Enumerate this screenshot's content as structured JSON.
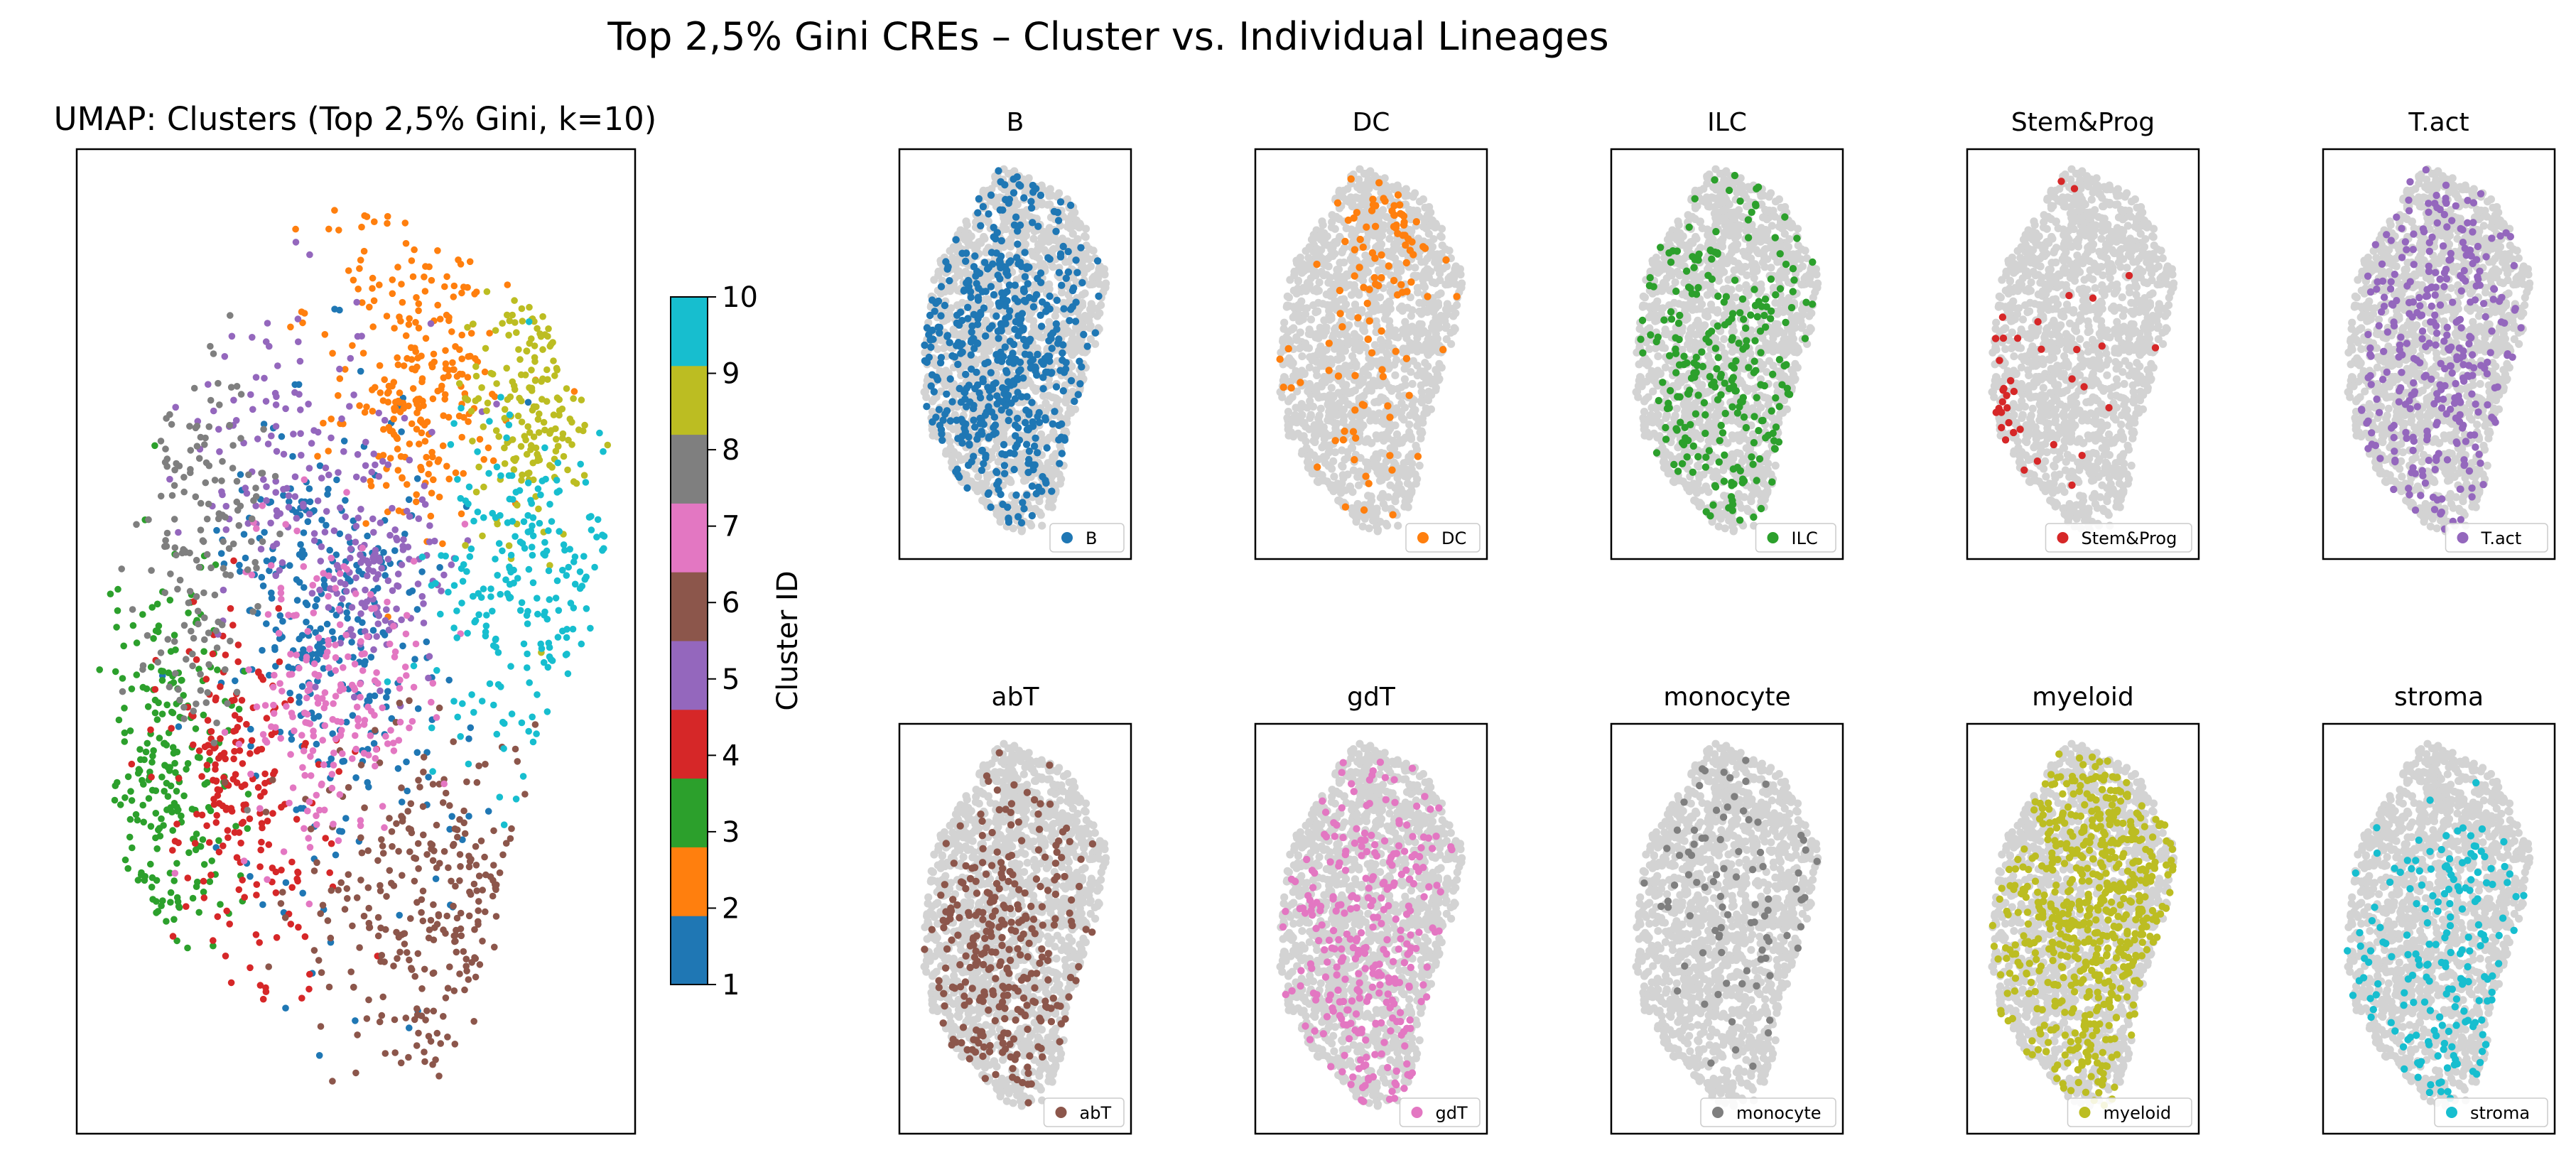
{
  "figure": {
    "suptitle": "Top 2,5% Gini CREs – Cluster vs. Individual Lineages"
  },
  "palette": {
    "gray": "#d3d3d3",
    "clusters": [
      "#1f77b4",
      "#ff7f0e",
      "#2ca02c",
      "#d62728",
      "#9467bd",
      "#8c564b",
      "#e377c2",
      "#7f7f7f",
      "#bcbd22",
      "#17becf"
    ]
  },
  "chart_data": [
    {
      "type": "scatter",
      "title": "UMAP: Clusters (Top 2,5% Gini, k=10)",
      "xlabel": "",
      "ylabel": "",
      "colorbar": {
        "label": "Cluster ID",
        "ticks": [
          "1",
          "2",
          "3",
          "4",
          "5",
          "6",
          "7",
          "8",
          "9",
          "10"
        ],
        "range": [
          1,
          10
        ]
      },
      "series": [
        {
          "cluster": 1,
          "color": "#1f77b4",
          "regions": [
            [
              0.5,
              0.55,
              0.12,
              0.16
            ],
            [
              0.4,
              0.44,
              0.08,
              0.08
            ]
          ]
        },
        {
          "cluster": 2,
          "color": "#ff7f0e",
          "regions": [
            [
              0.6,
              0.14,
              0.1,
              0.1
            ],
            [
              0.62,
              0.22,
              0.07,
              0.07
            ]
          ]
        },
        {
          "cluster": 3,
          "color": "#2ca02c",
          "regions": [
            [
              0.12,
              0.65,
              0.07,
              0.13
            ]
          ]
        },
        {
          "cluster": 4,
          "color": "#d62728",
          "regions": [
            [
              0.3,
              0.72,
              0.09,
              0.1
            ],
            [
              0.25,
              0.62,
              0.05,
              0.06
            ]
          ]
        },
        {
          "cluster": 5,
          "color": "#9467bd",
          "regions": [
            [
              0.38,
              0.27,
              0.13,
              0.09
            ],
            [
              0.52,
              0.42,
              0.07,
              0.05
            ]
          ]
        },
        {
          "cluster": 6,
          "color": "#8c564b",
          "regions": [
            [
              0.64,
              0.8,
              0.12,
              0.1
            ]
          ]
        },
        {
          "cluster": 7,
          "color": "#e377c2",
          "regions": [
            [
              0.45,
              0.56,
              0.09,
              0.09
            ]
          ]
        },
        {
          "cluster": 8,
          "color": "#7f7f7f",
          "regions": [
            [
              0.19,
              0.38,
              0.06,
              0.11
            ]
          ]
        },
        {
          "cluster": 9,
          "color": "#bcbd22",
          "regions": [
            [
              0.83,
              0.22,
              0.06,
              0.08
            ]
          ]
        },
        {
          "cluster": 10,
          "color": "#17becf",
          "regions": [
            [
              0.82,
              0.45,
              0.09,
              0.1
            ]
          ]
        }
      ]
    },
    {
      "type": "scatter",
      "small_multiples": true,
      "panels": [
        {
          "title": "B",
          "legend": "B",
          "color": "#1f77b4",
          "count": 520,
          "regions": [
            [
              0.42,
              0.52,
              0.3,
              0.32
            ]
          ]
        },
        {
          "title": "DC",
          "legend": "DC",
          "color": "#ff7f0e",
          "count": 110,
          "regions": [
            [
              0.62,
              0.18,
              0.14,
              0.1
            ],
            [
              0.5,
              0.6,
              0.28,
              0.3
            ]
          ]
        },
        {
          "title": "ILC",
          "legend": "ILC",
          "color": "#2ca02c",
          "count": 260,
          "regions": [
            [
              0.5,
              0.55,
              0.28,
              0.3
            ]
          ]
        },
        {
          "title": "Stem&Prog",
          "legend": "Stem&Prog",
          "color": "#d62728",
          "count": 38,
          "regions": [
            [
              0.08,
              0.65,
              0.05,
              0.12
            ],
            [
              0.5,
              0.45,
              0.35,
              0.3
            ]
          ]
        },
        {
          "title": "T.act",
          "legend": "T.act",
          "color": "#9467bd",
          "count": 320,
          "regions": [
            [
              0.5,
              0.5,
              0.28,
              0.28
            ]
          ]
        },
        {
          "title": "abT",
          "legend": "abT",
          "color": "#8c564b",
          "count": 300,
          "regions": [
            [
              0.4,
              0.6,
              0.25,
              0.28
            ]
          ]
        },
        {
          "title": "gdT",
          "legend": "gdT",
          "color": "#e377c2",
          "count": 300,
          "regions": [
            [
              0.5,
              0.58,
              0.28,
              0.3
            ]
          ]
        },
        {
          "title": "monocyte",
          "legend": "monocyte",
          "color": "#7f7f7f",
          "count": 90,
          "regions": [
            [
              0.55,
              0.45,
              0.3,
              0.3
            ]
          ]
        },
        {
          "title": "myeloid",
          "legend": "myeloid",
          "color": "#bcbd22",
          "count": 620,
          "regions": [
            [
              0.58,
              0.45,
              0.3,
              0.32
            ]
          ]
        },
        {
          "title": "stroma",
          "legend": "stroma",
          "color": "#17becf",
          "count": 190,
          "regions": [
            [
              0.52,
              0.62,
              0.26,
              0.28
            ]
          ]
        }
      ]
    }
  ]
}
